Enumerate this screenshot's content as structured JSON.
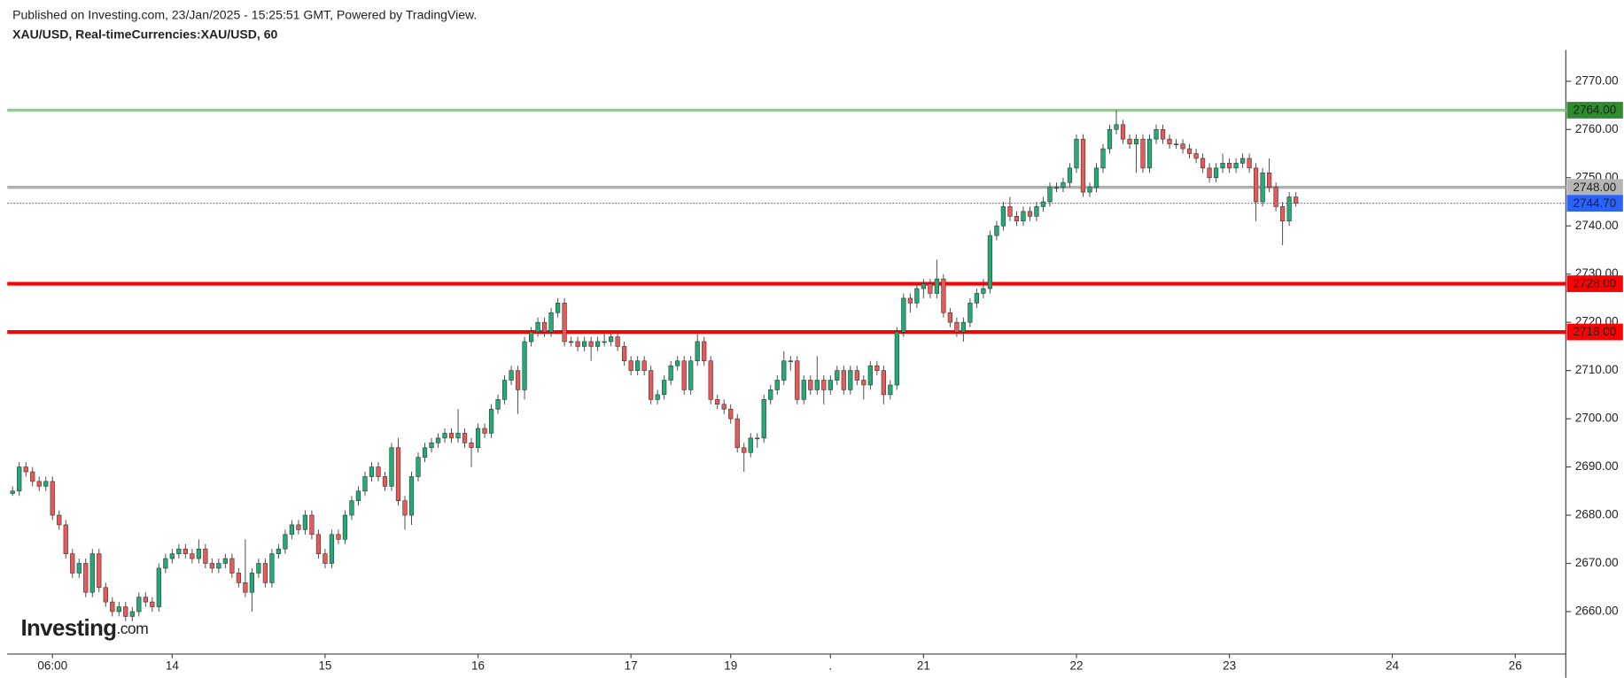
{
  "header": {
    "published": "Published on Investing.com, 23/Jan/2025 - 15:25:51 GMT, Powered by TradingView.",
    "symbol": "XAU/USD, Real-timeCurrencies:XAU/USD, 60"
  },
  "logo": {
    "text": "Investing",
    "suffix": ".com"
  },
  "chart_data": {
    "type": "candlestick",
    "up_color": "#22ab75",
    "down_color": "#e8595a",
    "grid": false,
    "xlim": [
      -0.8,
      233.6
    ],
    "xticks": [
      {
        "value": 6,
        "label": "06:00"
      },
      {
        "value": 24,
        "label": "14"
      },
      {
        "value": 47,
        "label": "15"
      },
      {
        "value": 70,
        "label": "16"
      },
      {
        "value": 93,
        "label": "17"
      },
      {
        "value": 108,
        "label": "19"
      },
      {
        "value": 123,
        "label": "."
      },
      {
        "value": 137,
        "label": "21"
      },
      {
        "value": 160,
        "label": "22"
      },
      {
        "value": 183,
        "label": "23"
      },
      {
        "value": 207.5,
        "label": "24"
      },
      {
        "value": 226,
        "label": "26"
      }
    ],
    "ylim": [
      2651.2,
      2776.5
    ],
    "yticks": [
      {
        "value": 2660,
        "label": "2660.00"
      },
      {
        "value": 2670,
        "label": "2670.00"
      },
      {
        "value": 2680,
        "label": "2680.00"
      },
      {
        "value": 2690,
        "label": "2690.00"
      },
      {
        "value": 2700,
        "label": "2700.00"
      },
      {
        "value": 2710,
        "label": "2710.00"
      },
      {
        "value": 2720,
        "label": "2720.00"
      },
      {
        "value": 2730,
        "label": "2730.00"
      },
      {
        "value": 2740,
        "label": "2740.00"
      },
      {
        "value": 2750,
        "label": "2750.00"
      },
      {
        "value": 2760,
        "label": "2760.00"
      },
      {
        "value": 2770,
        "label": "2770.00"
      }
    ],
    "levels": [
      {
        "value": 2764,
        "label": "2764.00",
        "color": "#90cf8f",
        "tag_color": "#2e8b2e",
        "text_color": "#ffffff",
        "width": 3
      },
      {
        "value": 2748,
        "label": "2748.00",
        "color": "#b0b0b0",
        "tag_color": "#b5b5b5",
        "text_color": "#000000",
        "width": 3
      },
      {
        "value": 2728,
        "label": "2728.00",
        "color": "#ff0000",
        "tag_color": "#ff0000",
        "text_color": "#ffffff",
        "width": 3.5
      },
      {
        "value": 2718,
        "label": "2718.00",
        "color": "#ff0000",
        "tag_color": "#ff0000",
        "text_color": "#ffffff",
        "width": 3.5
      }
    ],
    "last_price": {
      "value": 2744.7,
      "label": "2744.70",
      "color": "#2962ff"
    },
    "ohlc": [
      [
        2684.5,
        2686,
        2684,
        2685
      ],
      [
        2685,
        2691,
        2684,
        2690
      ],
      [
        2690,
        2691,
        2688,
        2689
      ],
      [
        2689,
        2690,
        2686,
        2687
      ],
      [
        2687,
        2688,
        2685,
        2686
      ],
      [
        2686,
        2688,
        2685,
        2687
      ],
      [
        2687,
        2688,
        2679,
        2680
      ],
      [
        2680,
        2681,
        2677,
        2678
      ],
      [
        2678,
        2679,
        2671,
        2672
      ],
      [
        2672,
        2673,
        2667,
        2668
      ],
      [
        2668,
        2671,
        2667,
        2670
      ],
      [
        2670,
        2671,
        2663,
        2664
      ],
      [
        2664,
        2673,
        2663,
        2672
      ],
      [
        2672,
        2673,
        2664,
        2665
      ],
      [
        2665,
        2666,
        2661,
        2662
      ],
      [
        2662,
        2663,
        2659,
        2660
      ],
      [
        2660,
        2662,
        2659,
        2661
      ],
      [
        2661,
        2662,
        2658,
        2659
      ],
      [
        2659,
        2661,
        2658,
        2660
      ],
      [
        2660,
        2664,
        2659,
        2663
      ],
      [
        2663,
        2664,
        2661,
        2662
      ],
      [
        2662,
        2663,
        2660,
        2661
      ],
      [
        2661,
        2670,
        2660,
        2669
      ],
      [
        2669,
        2672,
        2668,
        2671
      ],
      [
        2671,
        2673,
        2670,
        2672
      ],
      [
        2672,
        2674,
        2671,
        2673
      ],
      [
        2673,
        2674,
        2671,
        2672
      ],
      [
        2672,
        2673,
        2670,
        2671
      ],
      [
        2671,
        2675,
        2670,
        2673
      ],
      [
        2673,
        2674,
        2669,
        2670
      ],
      [
        2670,
        2671,
        2668,
        2669
      ],
      [
        2669,
        2671,
        2668,
        2670
      ],
      [
        2670,
        2672,
        2669,
        2671
      ],
      [
        2671,
        2672,
        2667,
        2668
      ],
      [
        2668,
        2669,
        2665,
        2666
      ],
      [
        2666,
        2675,
        2663,
        2664
      ],
      [
        2664,
        2669,
        2660,
        2668
      ],
      [
        2668,
        2671,
        2667,
        2670
      ],
      [
        2670,
        2671,
        2665,
        2666
      ],
      [
        2666,
        2673,
        2665,
        2672
      ],
      [
        2672,
        2674,
        2671,
        2673
      ],
      [
        2673,
        2677,
        2672,
        2676
      ],
      [
        2676,
        2679,
        2675,
        2678
      ],
      [
        2678,
        2679,
        2676,
        2677
      ],
      [
        2677,
        2681,
        2676,
        2680
      ],
      [
        2680,
        2681,
        2675,
        2676
      ],
      [
        2676,
        2677,
        2671,
        2672
      ],
      [
        2672,
        2673,
        2669,
        2670
      ],
      [
        2670,
        2677,
        2669,
        2676
      ],
      [
        2676,
        2677,
        2674,
        2675
      ],
      [
        2675,
        2681,
        2674,
        2680
      ],
      [
        2680,
        2684,
        2679,
        2683
      ],
      [
        2683,
        2686,
        2682,
        2685
      ],
      [
        2685,
        2689,
        2684,
        2688
      ],
      [
        2688,
        2691,
        2687,
        2690
      ],
      [
        2690,
        2691,
        2687,
        2688
      ],
      [
        2688,
        2689,
        2685,
        2686
      ],
      [
        2686,
        2695,
        2685,
        2694
      ],
      [
        2694,
        2696,
        2682,
        2683
      ],
      [
        2683,
        2684,
        2677,
        2680
      ],
      [
        2680,
        2689,
        2678,
        2688
      ],
      [
        2688,
        2693,
        2687,
        2692
      ],
      [
        2692,
        2695,
        2691,
        2694
      ],
      [
        2694,
        2696,
        2693,
        2695
      ],
      [
        2695,
        2697,
        2694,
        2696
      ],
      [
        2696,
        2698,
        2695,
        2697
      ],
      [
        2697,
        2698,
        2695,
        2696
      ],
      [
        2696,
        2702,
        2695,
        2697
      ],
      [
        2697,
        2698,
        2694,
        2695
      ],
      [
        2695,
        2696,
        2690,
        2694
      ],
      [
        2694,
        2699,
        2693,
        2698
      ],
      [
        2698,
        2699,
        2696,
        2697
      ],
      [
        2697,
        2703,
        2696,
        2702
      ],
      [
        2702,
        2705,
        2701,
        2704
      ],
      [
        2704,
        2709,
        2703,
        2708
      ],
      [
        2708,
        2711,
        2707,
        2710
      ],
      [
        2710,
        2711,
        2701,
        2706
      ],
      [
        2706,
        2717,
        2704,
        2716
      ],
      [
        2716,
        2719,
        2715,
        2718
      ],
      [
        2718,
        2721,
        2717,
        2720
      ],
      [
        2720,
        2721,
        2717,
        2718
      ],
      [
        2718,
        2723,
        2717,
        2722
      ],
      [
        2722,
        2725,
        2721,
        2724
      ],
      [
        2724,
        2725,
        2715,
        2716
      ],
      [
        2716,
        2717,
        2715,
        2716
      ],
      [
        2716,
        2717,
        2714,
        2715
      ],
      [
        2715,
        2717,
        2714,
        2716
      ],
      [
        2716,
        2717,
        2712,
        2715
      ],
      [
        2715,
        2717,
        2714,
        2716
      ],
      [
        2716,
        2718,
        2715,
        2716
      ],
      [
        2716,
        2718,
        2715,
        2717
      ],
      [
        2717,
        2718,
        2714,
        2715
      ],
      [
        2715,
        2716,
        2711,
        2712
      ],
      [
        2712,
        2713,
        2709,
        2710
      ],
      [
        2710,
        2713,
        2709,
        2712
      ],
      [
        2712,
        2713,
        2709,
        2710
      ],
      [
        2710,
        2711,
        2703,
        2704
      ],
      [
        2704,
        2706,
        2703,
        2705
      ],
      [
        2705,
        2709,
        2704,
        2708
      ],
      [
        2708,
        2712,
        2707,
        2711
      ],
      [
        2711,
        2713,
        2710,
        2712
      ],
      [
        2712,
        2713,
        2705,
        2706
      ],
      [
        2706,
        2713,
        2705,
        2712
      ],
      [
        2712,
        2718,
        2711,
        2716
      ],
      [
        2716,
        2717,
        2711,
        2712
      ],
      [
        2712,
        2713,
        2703,
        2704
      ],
      [
        2704,
        2705,
        2702,
        2703
      ],
      [
        2703,
        2704,
        2701,
        2702
      ],
      [
        2702,
        2703,
        2699,
        2700
      ],
      [
        2700,
        2701,
        2693,
        2694
      ],
      [
        2694,
        2695,
        2689,
        2693
      ],
      [
        2693,
        2697,
        2692,
        2696
      ],
      [
        2696,
        2697,
        2694,
        2696
      ],
      [
        2696,
        2705,
        2695,
        2704
      ],
      [
        2704,
        2707,
        2703,
        2706
      ],
      [
        2706,
        2709,
        2705,
        2708
      ],
      [
        2708,
        2714,
        2707,
        2712
      ],
      [
        2712,
        2713,
        2710,
        2712
      ],
      [
        2712,
        2713,
        2703,
        2704
      ],
      [
        2704,
        2709,
        2703,
        2708
      ],
      [
        2708,
        2709,
        2705,
        2706
      ],
      [
        2706,
        2713,
        2705,
        2708
      ],
      [
        2708,
        2709,
        2703,
        2706
      ],
      [
        2706,
        2709,
        2705,
        2708
      ],
      [
        2708,
        2711,
        2707,
        2710
      ],
      [
        2710,
        2711,
        2705,
        2706
      ],
      [
        2706,
        2711,
        2705,
        2710
      ],
      [
        2710,
        2711,
        2707,
        2708
      ],
      [
        2708,
        2709,
        2704,
        2707
      ],
      [
        2707,
        2712,
        2706,
        2711
      ],
      [
        2711,
        2712,
        2709,
        2710
      ],
      [
        2710,
        2711,
        2703,
        2705
      ],
      [
        2705,
        2708,
        2704,
        2707
      ],
      [
        2707,
        2719,
        2706,
        2718
      ],
      [
        2718,
        2726,
        2717,
        2725
      ],
      [
        2725,
        2726,
        2722,
        2724
      ],
      [
        2724,
        2728,
        2723,
        2727
      ],
      [
        2727,
        2729,
        2725,
        2728
      ],
      [
        2728,
        2729,
        2725,
        2726
      ],
      [
        2726,
        2733,
        2725,
        2729
      ],
      [
        2729,
        2730,
        2721,
        2722
      ],
      [
        2722,
        2723,
        2719,
        2720
      ],
      [
        2720,
        2721,
        2717,
        2718
      ],
      [
        2718,
        2721,
        2716,
        2720
      ],
      [
        2720,
        2725,
        2719,
        2724
      ],
      [
        2724,
        2727,
        2723,
        2726
      ],
      [
        2726,
        2729,
        2725,
        2727
      ],
      [
        2727,
        2739,
        2726,
        2738
      ],
      [
        2738,
        2741,
        2737,
        2740
      ],
      [
        2740,
        2745,
        2739,
        2744
      ],
      [
        2744,
        2746,
        2741,
        2742
      ],
      [
        2742,
        2743,
        2740,
        2741
      ],
      [
        2741,
        2744,
        2740,
        2743
      ],
      [
        2743,
        2744,
        2741,
        2742
      ],
      [
        2742,
        2745,
        2741,
        2744
      ],
      [
        2744,
        2746,
        2743,
        2745
      ],
      [
        2745,
        2749,
        2744,
        2748
      ],
      [
        2748,
        2749,
        2747,
        2748
      ],
      [
        2748,
        2750,
        2747,
        2749
      ],
      [
        2749,
        2753,
        2748,
        2752
      ],
      [
        2752,
        2759,
        2751,
        2758
      ],
      [
        2758,
        2759,
        2746,
        2747
      ],
      [
        2747,
        2749,
        2746,
        2748
      ],
      [
        2748,
        2753,
        2747,
        2752
      ],
      [
        2752,
        2757,
        2751,
        2756
      ],
      [
        2756,
        2761,
        2755,
        2760
      ],
      [
        2760,
        2764,
        2759,
        2761
      ],
      [
        2761,
        2762,
        2757,
        2758
      ],
      [
        2758,
        2759,
        2756,
        2757
      ],
      [
        2757,
        2759,
        2751,
        2758
      ],
      [
        2758,
        2759,
        2751,
        2752
      ],
      [
        2752,
        2759,
        2751,
        2758
      ],
      [
        2758,
        2761,
        2757,
        2760
      ],
      [
        2760,
        2761,
        2757,
        2758
      ],
      [
        2758,
        2759,
        2756,
        2757
      ],
      [
        2757,
        2758,
        2756,
        2757
      ],
      [
        2757,
        2758,
        2755,
        2756
      ],
      [
        2756,
        2757,
        2754,
        2755
      ],
      [
        2755,
        2756,
        2753,
        2754
      ],
      [
        2754,
        2755,
        2751,
        2752
      ],
      [
        2752,
        2753,
        2749,
        2750
      ],
      [
        2750,
        2753,
        2749,
        2752
      ],
      [
        2752,
        2755,
        2751,
        2753
      ],
      [
        2753,
        2754,
        2751,
        2752
      ],
      [
        2752,
        2754,
        2751,
        2753
      ],
      [
        2753,
        2755,
        2752,
        2754
      ],
      [
        2754,
        2755,
        2751,
        2752
      ],
      [
        2752,
        2753,
        2741,
        2745
      ],
      [
        2745,
        2752,
        2744,
        2751
      ],
      [
        2751,
        2754,
        2747,
        2748
      ],
      [
        2748,
        2749,
        2743,
        2744
      ],
      [
        2744,
        2745,
        2736,
        2741
      ],
      [
        2741,
        2747,
        2740,
        2746
      ],
      [
        2746,
        2747,
        2744,
        2744.7
      ]
    ]
  }
}
